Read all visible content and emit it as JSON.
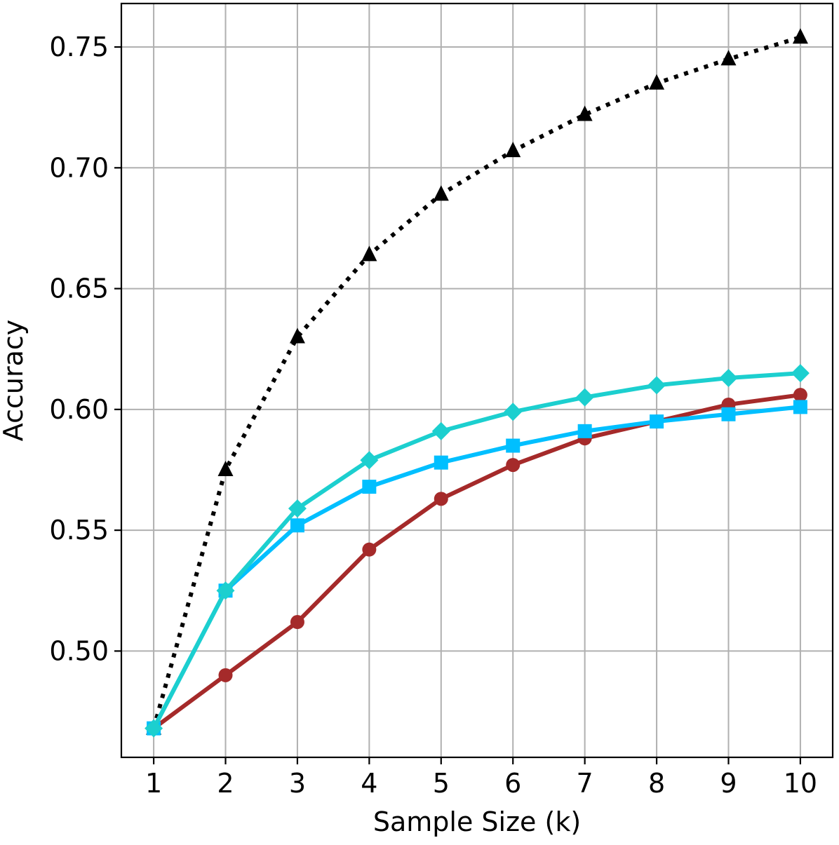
{
  "chart_data": {
    "type": "line",
    "xlabel": "Sample Size (k)",
    "ylabel": "Accuracy",
    "x": [
      1,
      2,
      3,
      4,
      5,
      6,
      7,
      8,
      9,
      10
    ],
    "xlim": [
      0.55,
      10.45
    ],
    "ylim": [
      0.456,
      0.768
    ],
    "x_ticks": [
      1,
      2,
      3,
      4,
      5,
      6,
      7,
      8,
      9,
      10
    ],
    "y_ticks": [
      0.5,
      0.55,
      0.6,
      0.65,
      0.7,
      0.75
    ],
    "x_tick_labels": [
      "1",
      "2",
      "3",
      "4",
      "5",
      "6",
      "7",
      "8",
      "9",
      "10"
    ],
    "y_tick_labels": [
      "0.50",
      "0.55",
      "0.60",
      "0.65",
      "0.70",
      "0.75"
    ],
    "grid": true,
    "series": [
      {
        "marker": "triangle",
        "color": "#000000",
        "line_style": "dotted",
        "values": [
          0.468,
          0.575,
          0.63,
          0.664,
          0.689,
          0.707,
          0.722,
          0.735,
          0.745,
          0.754
        ]
      },
      {
        "marker": "circle",
        "color": "#a52a2a",
        "line_style": "solid",
        "values": [
          0.468,
          0.49,
          0.512,
          0.542,
          0.563,
          0.577,
          0.588,
          0.595,
          0.602,
          0.606
        ]
      },
      {
        "marker": "square",
        "color": "#00bfff",
        "line_style": "solid",
        "values": [
          0.468,
          0.525,
          0.552,
          0.568,
          0.578,
          0.585,
          0.591,
          0.595,
          0.598,
          0.601
        ]
      },
      {
        "marker": "diamond",
        "color": "#1ccfcf",
        "line_style": "solid",
        "values": [
          0.468,
          0.525,
          0.559,
          0.579,
          0.591,
          0.599,
          0.605,
          0.61,
          0.613,
          0.615
        ]
      }
    ]
  }
}
